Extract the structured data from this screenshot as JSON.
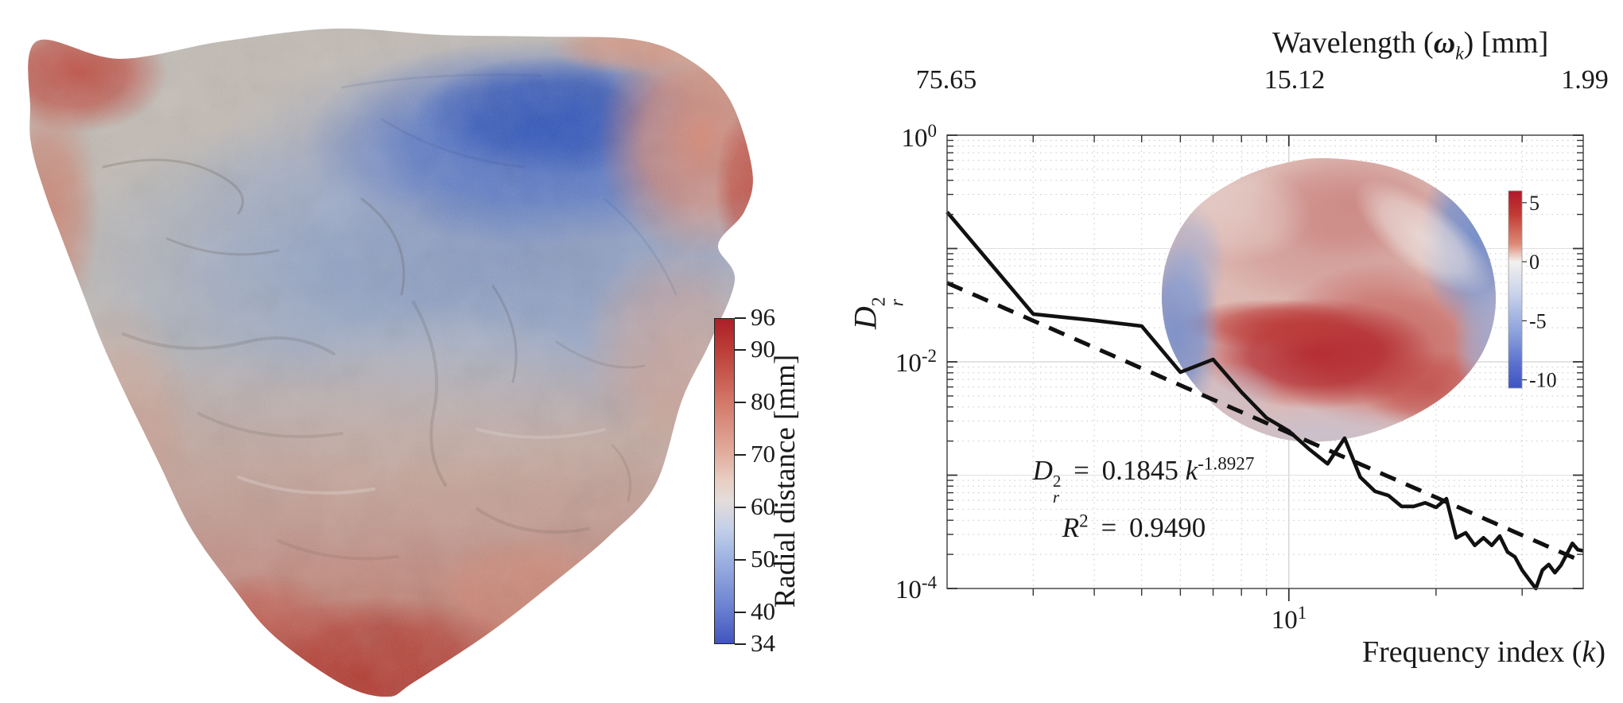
{
  "figure": {
    "left_panel": {
      "art": "3D rendered sand particle surface colored by radial distance (blue concave top, red extremities)",
      "colorbar": {
        "ticks": [
          "96",
          "90",
          "80",
          "70",
          "60",
          "50",
          "40",
          "34"
        ],
        "tick_values": [
          96,
          90,
          80,
          70,
          60,
          50,
          40,
          34
        ],
        "label": "Radial distance [mm]"
      }
    },
    "right_panel": {
      "top_axis": {
        "label_pre": "Wavelength (",
        "label_omega": "ω",
        "label_omega_sub": "k",
        "label_post": ") [mm]",
        "ticks": [
          "75.65",
          "15.12",
          "1.99"
        ]
      },
      "x_axis": {
        "tick_base": "10",
        "tick_exp": "1",
        "label_pre": "Frequency index (",
        "label_var": "k",
        "label_post": ")"
      },
      "y_axis": {
        "sym": "D",
        "sup": "2",
        "sub": "r",
        "ticks": [
          {
            "base": "10",
            "exp": "0"
          },
          {
            "base": "10",
            "exp": "-2"
          },
          {
            "base": "10",
            "exp": "-4"
          }
        ]
      },
      "annotation": {
        "lhs": "D",
        "lhs_sup": "2",
        "lhs_sub": "r",
        "eq": "=",
        "coeff": "0.1845",
        "var": "k",
        "var_exp": "-1.8927",
        "r": "R",
        "r_sup": "2",
        "r_eq": "=",
        "r_val": "0.9490"
      },
      "inset_colorbar": {
        "ticks": [
          "5",
          "0",
          "-5",
          "-10"
        ],
        "tick_values": [
          5,
          0,
          -5,
          -10
        ]
      }
    }
  },
  "chart_data": {
    "type": "line",
    "x_scale": "log",
    "y_scale": "log",
    "xlim": [
      2,
      40
    ],
    "ylim": [
      0.0001,
      1
    ],
    "xlabel": "Frequency index (k)",
    "ylabel": "D_r^2",
    "top_axis_label": "Wavelength (ω_k) [mm]",
    "top_axis_tick_labels": [
      "75.65",
      "15.12",
      "1.99"
    ],
    "top_axis_tick_positions_k": [
      2,
      10,
      40
    ],
    "x_tick_labels": [
      "10^1"
    ],
    "y_tick_labels": [
      "10^0",
      "10^-2",
      "10^-4"
    ],
    "grid": "log minor grid, dotted",
    "legend_position": "none",
    "series": [
      {
        "name": "radial-distance descriptor spectrum",
        "style": "solid",
        "color": "#111111",
        "x": [
          2,
          3,
          4,
          5,
          6,
          7,
          8,
          9,
          10,
          11,
          12,
          13,
          14,
          15,
          16,
          17,
          18,
          19,
          20,
          21,
          22,
          23,
          24,
          25,
          26,
          27,
          28,
          29,
          30,
          31,
          32,
          33,
          34,
          35,
          36,
          37,
          38,
          39,
          40
        ],
        "y": [
          0.21,
          0.0264,
          0.0232,
          0.0207,
          0.0081,
          0.0105,
          0.0054,
          0.0032,
          0.00245,
          0.0017,
          0.00126,
          0.00212,
          0.00096,
          0.00072,
          0.00066,
          0.00053,
          0.00053,
          0.00057,
          0.00052,
          0.00062,
          0.00028,
          0.00031,
          0.00024,
          0.00028,
          0.00024,
          0.00029,
          0.00021,
          0.00019,
          0.000145,
          0.00012,
          0.0001,
          0.000145,
          0.000163,
          0.000138,
          0.00016,
          0.0002,
          0.00025,
          0.00022,
          0.000215
        ]
      },
      {
        "name": "power-law fit",
        "style": "dashed",
        "color": "#111111",
        "fit_coeff": 0.1845,
        "fit_exponent": -1.8927,
        "r_squared": 0.949,
        "x_range": [
          2,
          40
        ]
      }
    ],
    "annotations": [
      "D_r^2 = 0.1845 k^-1.8927",
      "R^2 = 0.9490"
    ],
    "inset": {
      "type": "heatmap",
      "description": "2D spherical-projection deviation map of the particle (red high, blue low)",
      "colorbar_ticks": [
        5,
        0,
        -5,
        -10
      ]
    }
  }
}
